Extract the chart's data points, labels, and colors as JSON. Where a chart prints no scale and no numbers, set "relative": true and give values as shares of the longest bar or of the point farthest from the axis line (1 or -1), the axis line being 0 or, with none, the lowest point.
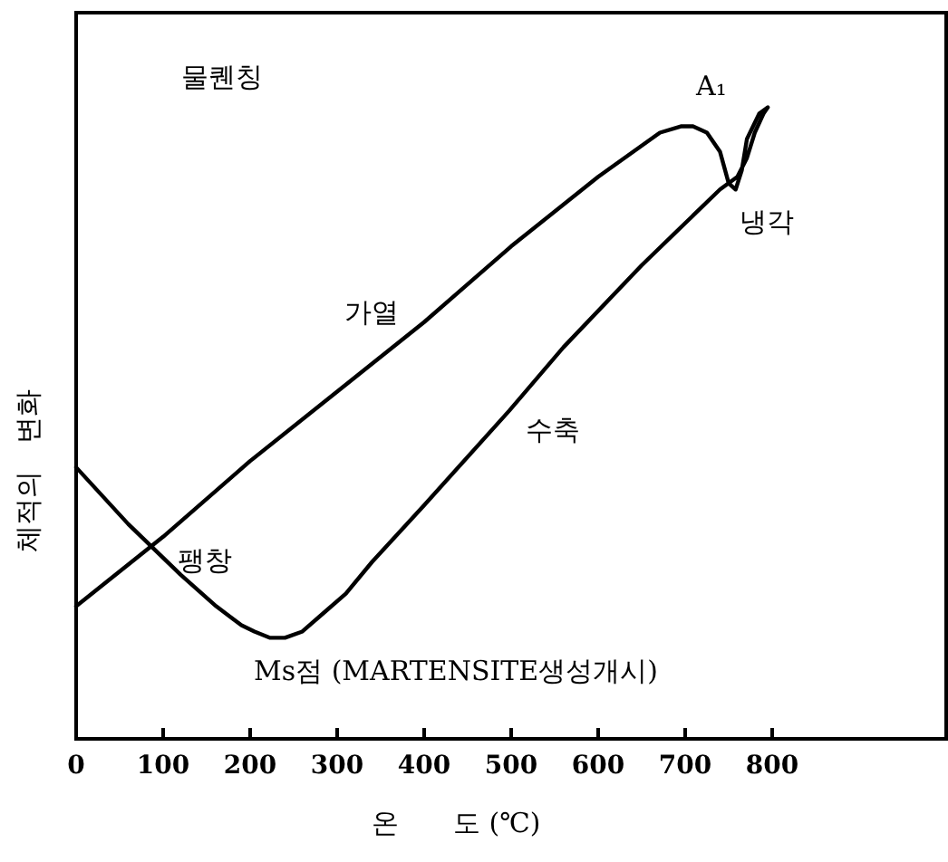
{
  "chart_data": {
    "type": "line",
    "relative": true,
    "xlabel": "온　　도 (℃)",
    "ylabel": "체적의　변화",
    "annotations": [
      "물퀜칭",
      "A₁",
      "냉각",
      "가열",
      "수축",
      "팽창",
      "Ms점 (MARTENSITE생성개시)"
    ],
    "series": [
      {
        "color": "#000000",
        "x": [
          0,
          100,
          200,
          300,
          400,
          500,
          600,
          671,
          695,
          709,
          725,
          740,
          750,
          758,
          765,
          771,
          785,
          795,
          790,
          780,
          771,
          760,
          740,
          650,
          560,
          498,
          400,
          340,
          310,
          285,
          260,
          240,
          223,
          205,
          190,
          161,
          120,
          60,
          0
        ],
        "values": [
          0.21,
          0.32,
          0.44,
          0.55,
          0.66,
          0.78,
          0.89,
          0.96,
          0.97,
          0.97,
          0.96,
          0.93,
          0.88,
          0.87,
          0.9,
          0.95,
          0.99,
          1.0,
          0.99,
          0.96,
          0.92,
          0.89,
          0.87,
          0.75,
          0.62,
          0.52,
          0.37,
          0.28,
          0.23,
          0.2,
          0.17,
          0.16,
          0.16,
          0.17,
          0.18,
          0.21,
          0.26,
          0.34,
          0.43
        ]
      }
    ],
    "xlim": [
      0,
      1000
    ],
    "xticks": [
      0,
      100,
      200,
      300,
      400,
      500,
      600,
      700,
      800
    ],
    "grid": false,
    "marker": "none",
    "line_style": "solid"
  }
}
